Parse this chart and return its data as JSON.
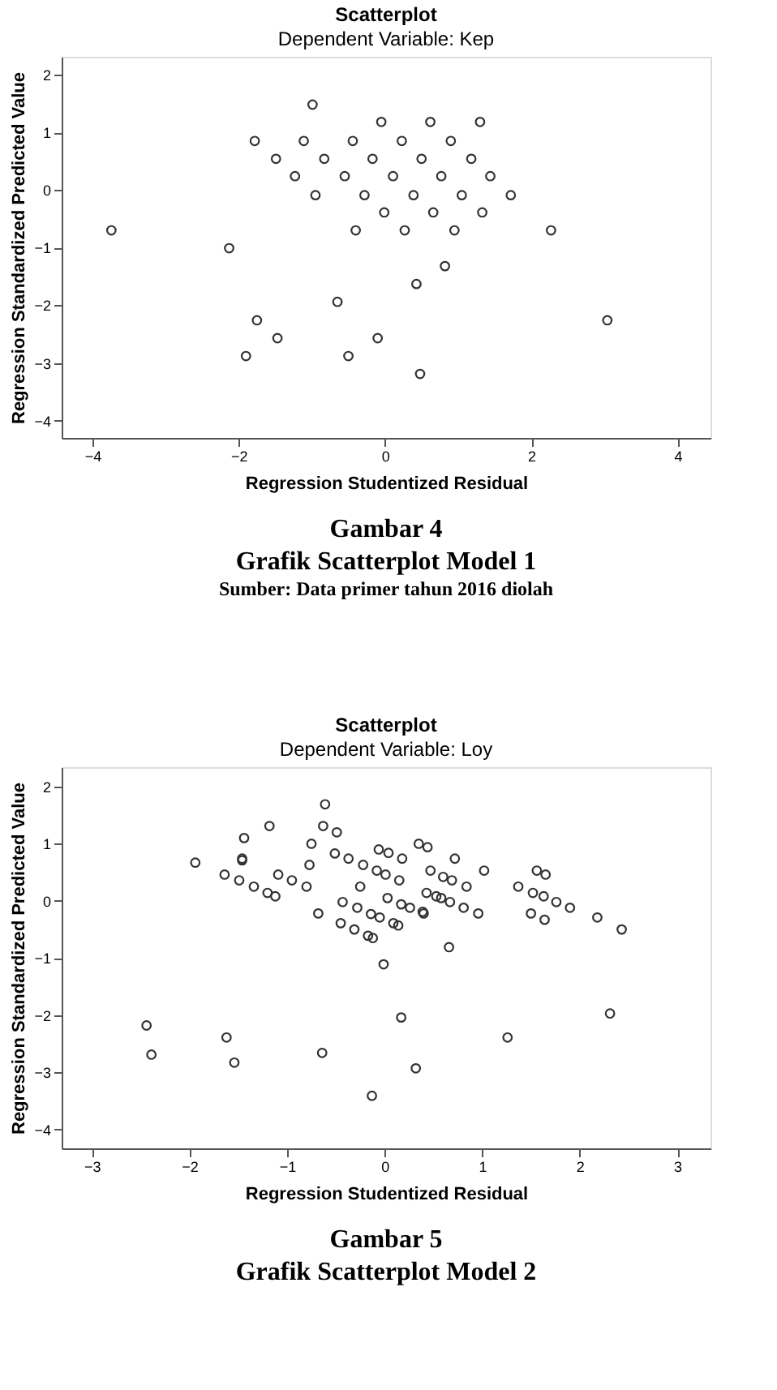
{
  "chart_data": [
    {
      "type": "scatter",
      "title": "Scatterplot",
      "subtitle": "Dependent Variable: Kep",
      "xlabel": "Regression Studentized Residual",
      "ylabel": "Regression Standardized Predicted Value",
      "annotations": [
        "Gambar 4",
        "Grafik Scatterplot Model 1",
        "Sumber: Data primer tahun 2016 diolah"
      ],
      "xlim": [
        -4.42,
        4.45
      ],
      "ylim": [
        -4.3,
        2.31
      ],
      "xticks": [
        -4,
        -2,
        0,
        2,
        4
      ],
      "yticks": [
        -4,
        -3,
        -2,
        -1,
        0,
        1,
        2
      ],
      "marker": "circle",
      "grid": false,
      "series": [
        {
          "color": "#333333",
          "x": [
            -0.99,
            -0.05,
            0.62,
            1.3,
            -1.78,
            -1.11,
            -0.44,
            0.23,
            0.9,
            -1.49,
            -0.83,
            -0.17,
            0.5,
            1.18,
            -1.23,
            -0.55,
            0.11,
            0.77,
            1.44,
            -0.95,
            -0.28,
            0.39,
            1.05,
            1.72,
            -0.01,
            0.66,
            1.33,
            -3.74,
            -0.4,
            0.27,
            0.95,
            2.27,
            -2.13,
            0.82,
            0.43,
            -0.65,
            3.04,
            -1.75,
            -1.47,
            -0.1,
            -1.9,
            -0.5,
            0.48
          ],
          "values": [
            1.48,
            1.18,
            1.18,
            1.18,
            0.85,
            0.85,
            0.85,
            0.85,
            0.85,
            0.54,
            0.54,
            0.54,
            0.54,
            0.54,
            0.24,
            0.24,
            0.24,
            0.24,
            0.24,
            -0.09,
            -0.09,
            -0.09,
            -0.09,
            -0.09,
            -0.39,
            -0.39,
            -0.39,
            -0.7,
            -0.7,
            -0.7,
            -0.7,
            -0.7,
            -1.01,
            -1.32,
            -1.63,
            -1.94,
            -2.26,
            -2.26,
            -2.57,
            -2.57,
            -2.88,
            -2.88,
            -3.19
          ]
        }
      ]
    },
    {
      "type": "scatter",
      "title": "Scatterplot",
      "subtitle": "Dependent Variable: Loy",
      "xlabel": "Regression Studentized Residual",
      "ylabel": "Regression Standardized Predicted Value",
      "annotations": [
        "Gambar 5",
        "Grafik Scatterplot Model 2"
      ],
      "xlim": [
        -3.31,
        3.34
      ],
      "ylim": [
        -4.33,
        2.34
      ],
      "xticks": [
        -3,
        -2,
        -1,
        0,
        1,
        2,
        3
      ],
      "yticks": [
        -4,
        -3,
        -2,
        -1,
        0,
        1,
        2
      ],
      "marker": "circle",
      "grid": false,
      "series": [
        {
          "color": "#333333",
          "x": [
            -0.61,
            -1.18,
            -0.63,
            -0.49,
            -1.44,
            -1.46,
            -1.46,
            -0.75,
            -1.94,
            -1.64,
            -1.49,
            -1.34,
            -1.2,
            -1.12,
            -1.09,
            -0.95,
            -0.8,
            -0.77,
            -0.51,
            -0.37,
            -0.22,
            -0.08,
            0.01,
            0.15,
            -0.25,
            -0.06,
            0.04,
            0.18,
            0.35,
            0.44,
            0.47,
            0.6,
            0.69,
            0.84,
            0.72,
            1.02,
            0.43,
            0.53,
            0.58,
            0.67,
            0.81,
            0.96,
            0.39,
            0.4,
            0.03,
            0.17,
            0.26,
            -0.43,
            -0.28,
            -0.14,
            -0.05,
            -0.68,
            -0.45,
            -0.31,
            -0.17,
            -0.12,
            0.09,
            0.14,
            0.66,
            -0.01,
            1.56,
            1.65,
            1.37,
            1.52,
            1.63,
            1.76,
            1.9,
            1.5,
            1.64,
            2.18,
            2.43,
            -2.44,
            -2.39,
            -1.62,
            -1.54,
            -0.64,
            0.17,
            0.32,
            -0.13,
            1.26,
            2.31
          ],
          "values": [
            1.69,
            1.31,
            1.31,
            1.2,
            1.1,
            0.74,
            0.71,
            1.0,
            0.67,
            0.46,
            0.36,
            0.25,
            0.14,
            0.08,
            0.46,
            0.36,
            0.25,
            0.63,
            0.83,
            0.74,
            0.63,
            0.53,
            0.46,
            0.36,
            0.25,
            0.9,
            0.84,
            0.74,
            1.0,
            0.94,
            0.53,
            0.42,
            0.36,
            0.25,
            0.74,
            0.53,
            0.14,
            0.08,
            0.05,
            -0.02,
            -0.12,
            -0.22,
            -0.19,
            -0.22,
            0.05,
            -0.06,
            -0.12,
            -0.02,
            -0.12,
            -0.23,
            -0.29,
            -0.22,
            -0.39,
            -0.5,
            -0.61,
            -0.65,
            -0.39,
            -0.43,
            -0.81,
            -1.11,
            0.53,
            0.46,
            0.25,
            0.14,
            0.08,
            -0.02,
            -0.12,
            -0.22,
            -0.33,
            -0.29,
            -0.5,
            -2.18,
            -2.69,
            -2.39,
            -2.83,
            -2.66,
            -2.04,
            -2.93,
            -3.41,
            -2.39,
            -1.97
          ]
        }
      ]
    }
  ]
}
